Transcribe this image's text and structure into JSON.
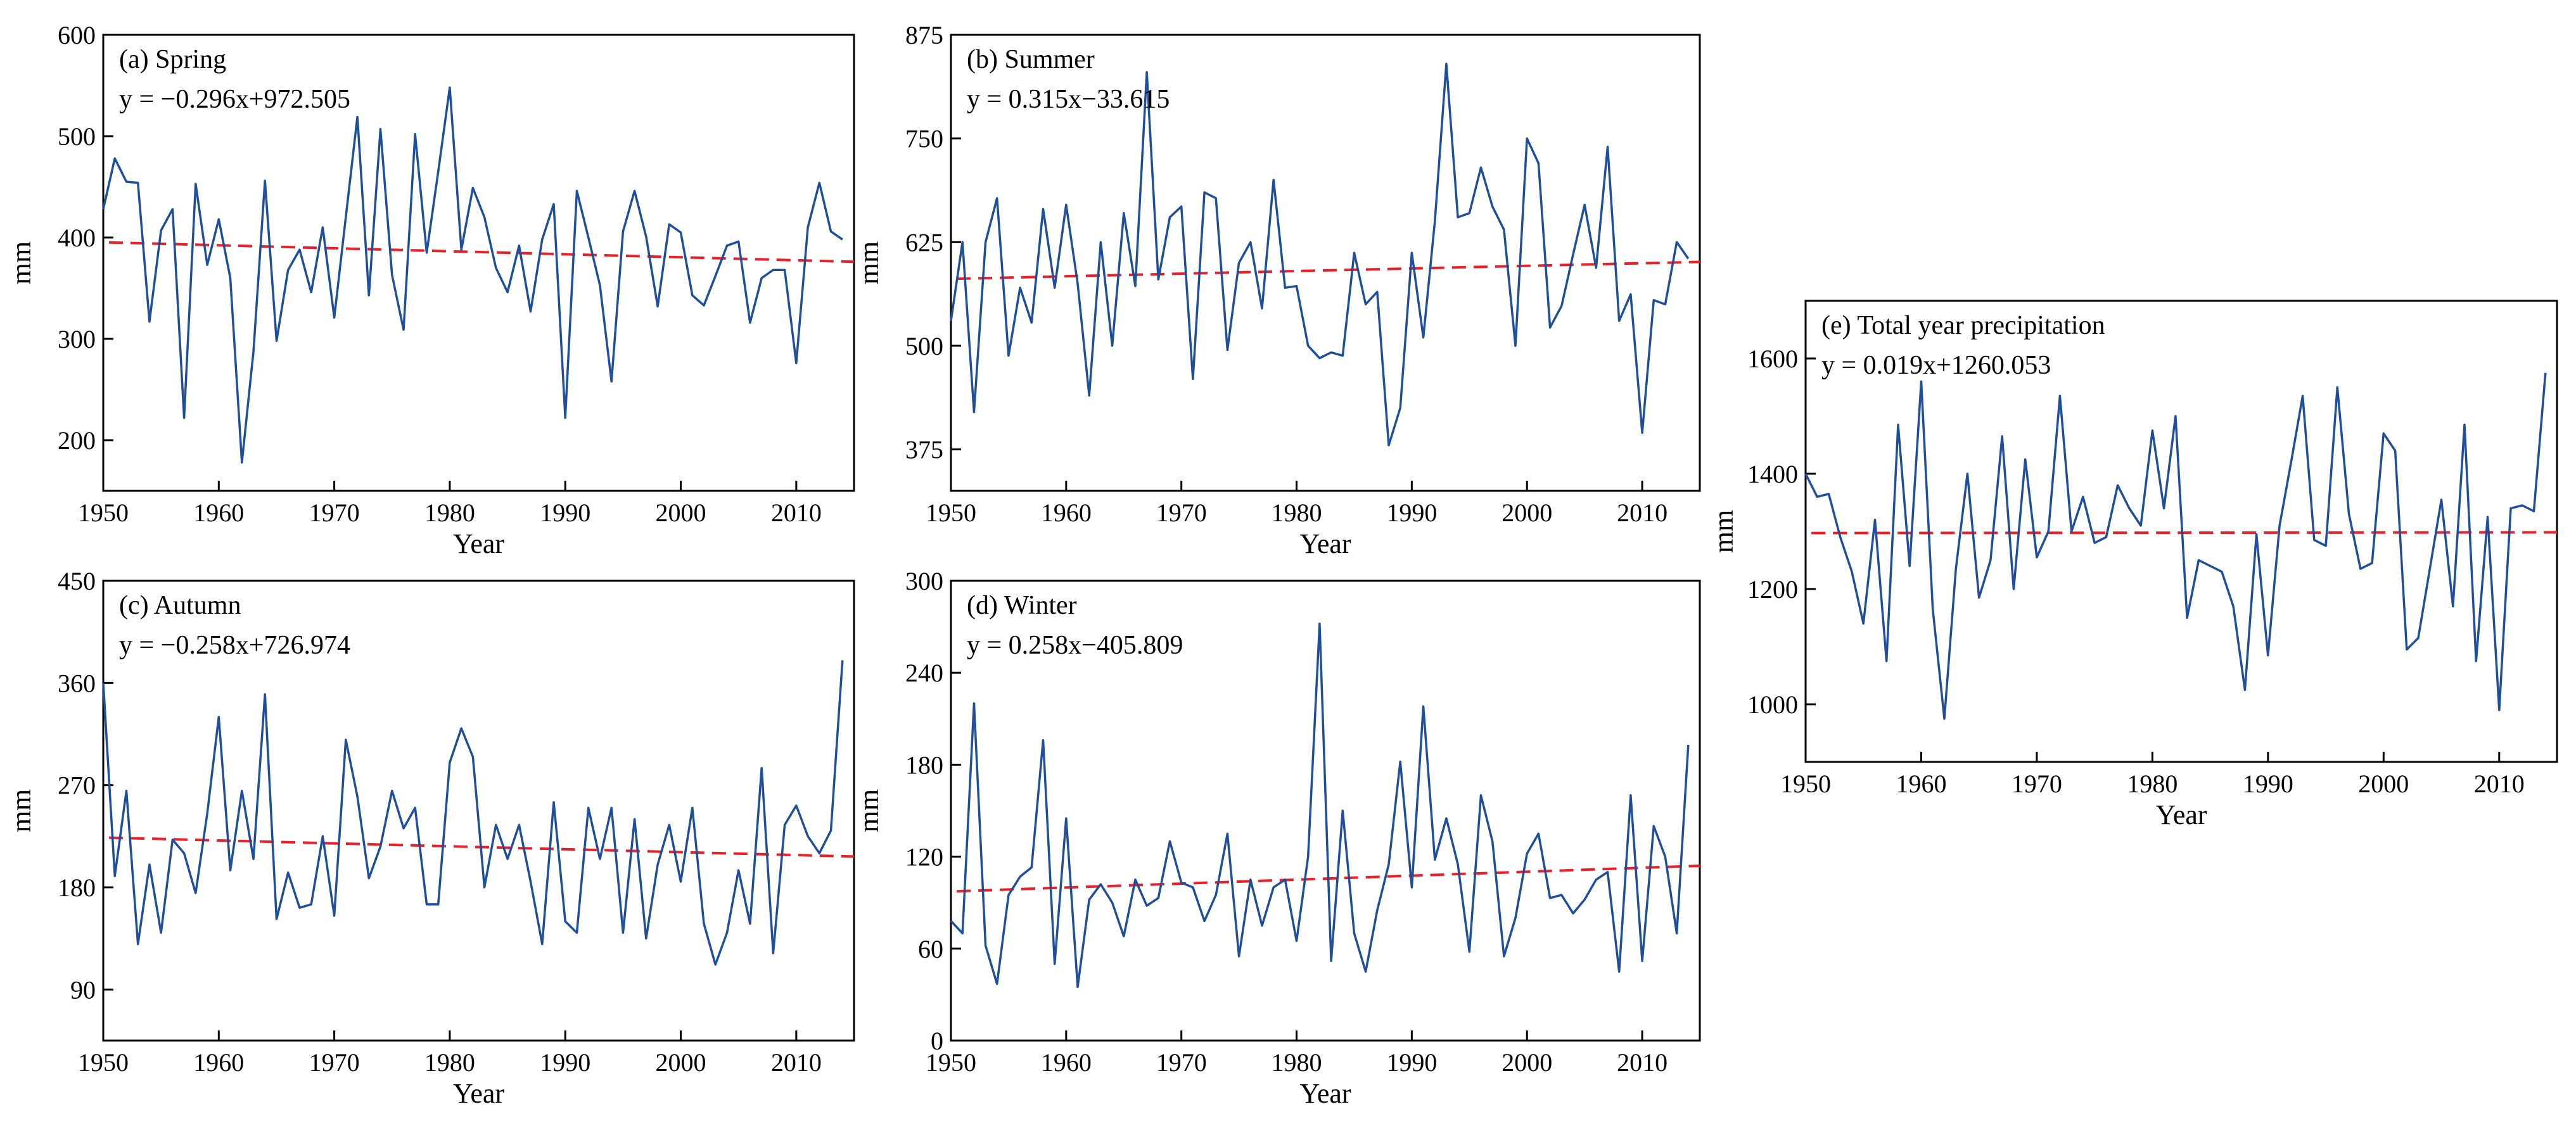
{
  "colors": {
    "series": "#1f4e9b",
    "trend": "#e8202a",
    "axis": "#000000"
  },
  "chart_data": [
    {
      "type": "line",
      "title": "(a) Spring",
      "equation": "y = −0.296x+972.505",
      "xlabel": "Year",
      "ylabel": "mm",
      "xlim": [
        1950,
        2015
      ],
      "ylim": [
        150,
        600
      ],
      "xticks": [
        1950,
        1960,
        1970,
        1980,
        1990,
        2000,
        2010
      ],
      "yticks": [
        200,
        300,
        400,
        500,
        600
      ],
      "start_year": 1950,
      "values": [
        428,
        478,
        455,
        454,
        317,
        407,
        428,
        222,
        453,
        373,
        418,
        360,
        178,
        287,
        456,
        298,
        368,
        388,
        346,
        410,
        321,
        420,
        519,
        343,
        507,
        363,
        309,
        502,
        385,
        465,
        548,
        388,
        449,
        420,
        370,
        346,
        392,
        327,
        398,
        433,
        222,
        446,
        400,
        353,
        258,
        406,
        446,
        401,
        332,
        413,
        405,
        343,
        333,
        362,
        392,
        396,
        316,
        360,
        368,
        368,
        276,
        410,
        454,
        406,
        398
      ],
      "trend": {
        "slope": -0.296,
        "intercept": 972.505
      }
    },
    {
      "type": "line",
      "title": "(b) Summer",
      "equation": "y = 0.315x−33.615",
      "xlabel": "Year",
      "ylabel": "mm",
      "xlim": [
        1950,
        2015
      ],
      "ylim": [
        325,
        875
      ],
      "xticks": [
        1950,
        1960,
        1970,
        1980,
        1990,
        2000,
        2010
      ],
      "yticks": [
        375,
        500,
        625,
        750,
        875
      ],
      "start_year": 1950,
      "values": [
        530,
        625,
        420,
        625,
        678,
        488,
        570,
        528,
        665,
        570,
        670,
        575,
        440,
        625,
        500,
        660,
        572,
        830,
        580,
        655,
        668,
        460,
        685,
        678,
        495,
        600,
        625,
        545,
        700,
        570,
        572,
        500,
        485,
        492,
        488,
        612,
        550,
        565,
        380,
        425,
        612,
        510,
        650,
        840,
        655,
        660,
        715,
        668,
        640,
        500,
        750,
        720,
        522,
        548,
        610,
        670,
        594,
        740,
        530,
        562,
        395,
        555,
        550,
        625,
        605
      ],
      "trend": {
        "slope": 0.315,
        "intercept": -33.615
      }
    },
    {
      "type": "line",
      "title": "(c) Autumn",
      "equation": "y = −0.258x+726.974",
      "xlabel": "Year",
      "ylabel": "mm",
      "xlim": [
        1950,
        2015
      ],
      "ylim": [
        45,
        450
      ],
      "xticks": [
        1950,
        1960,
        1970,
        1980,
        1990,
        2000,
        2010
      ],
      "yticks": [
        90,
        180,
        270,
        360,
        450
      ],
      "start_year": 1950,
      "values": [
        360,
        190,
        265,
        130,
        200,
        140,
        222,
        210,
        175,
        245,
        330,
        195,
        265,
        205,
        350,
        152,
        193,
        162,
        165,
        225,
        155,
        310,
        260,
        188,
        216,
        265,
        232,
        250,
        165,
        165,
        290,
        320,
        295,
        180,
        235,
        205,
        235,
        185,
        130,
        255,
        150,
        140,
        250,
        205,
        250,
        140,
        240,
        135,
        200,
        235,
        185,
        250,
        148,
        112,
        140,
        195,
        148,
        285,
        122,
        235,
        252,
        225,
        210,
        230,
        380
      ],
      "trend": {
        "slope": -0.258,
        "intercept": 726.974
      }
    },
    {
      "type": "line",
      "title": "(d) Winter",
      "equation": "y = 0.258x−405.809",
      "xlabel": "Year",
      "ylabel": "mm",
      "xlim": [
        1950,
        2015
      ],
      "ylim": [
        0,
        300
      ],
      "xticks": [
        1950,
        1960,
        1970,
        1980,
        1990,
        2000,
        2010
      ],
      "yticks": [
        0,
        60,
        120,
        180,
        240,
        300
      ],
      "start_year": 1950,
      "values": [
        78,
        70,
        220,
        62,
        37,
        95,
        107,
        113,
        196,
        50,
        145,
        35,
        92,
        102,
        90,
        68,
        105,
        88,
        93,
        130,
        103,
        100,
        78,
        95,
        135,
        55,
        105,
        75,
        100,
        105,
        65,
        120,
        272,
        52,
        150,
        70,
        45,
        85,
        115,
        182,
        100,
        218,
        118,
        145,
        115,
        58,
        160,
        130,
        55,
        80,
        122,
        135,
        93,
        95,
        83,
        92,
        105,
        110,
        45,
        160,
        52,
        140,
        120,
        70,
        193
      ],
      "trend": {
        "slope": 0.258,
        "intercept": -405.809
      }
    },
    {
      "type": "line",
      "title": "(e) Total year precipitation",
      "equation": "y = 0.019x+1260.053",
      "xlabel": "Year",
      "ylabel": "mm",
      "xlim": [
        1950,
        2015
      ],
      "ylim": [
        900,
        1700
      ],
      "xticks": [
        1950,
        1960,
        1970,
        1980,
        1990,
        2000,
        2010
      ],
      "yticks": [
        1000,
        1200,
        1400,
        1600
      ],
      "start_year": 1950,
      "values": [
        1400,
        1360,
        1365,
        1290,
        1230,
        1140,
        1320,
        1075,
        1485,
        1240,
        1560,
        1165,
        975,
        1235,
        1400,
        1185,
        1250,
        1465,
        1200,
        1425,
        1255,
        1300,
        1535,
        1300,
        1360,
        1280,
        1290,
        1380,
        1340,
        1310,
        1475,
        1340,
        1500,
        1150,
        1250,
        1240,
        1230,
        1170,
        1025,
        1295,
        1085,
        1310,
        1420,
        1535,
        1285,
        1275,
        1550,
        1330,
        1235,
        1245,
        1470,
        1440,
        1095,
        1115,
        1235,
        1355,
        1170,
        1485,
        1075,
        1325,
        990,
        1340,
        1345,
        1335,
        1575
      ],
      "trend": {
        "slope": 0.019,
        "intercept": 1260.053
      }
    }
  ]
}
